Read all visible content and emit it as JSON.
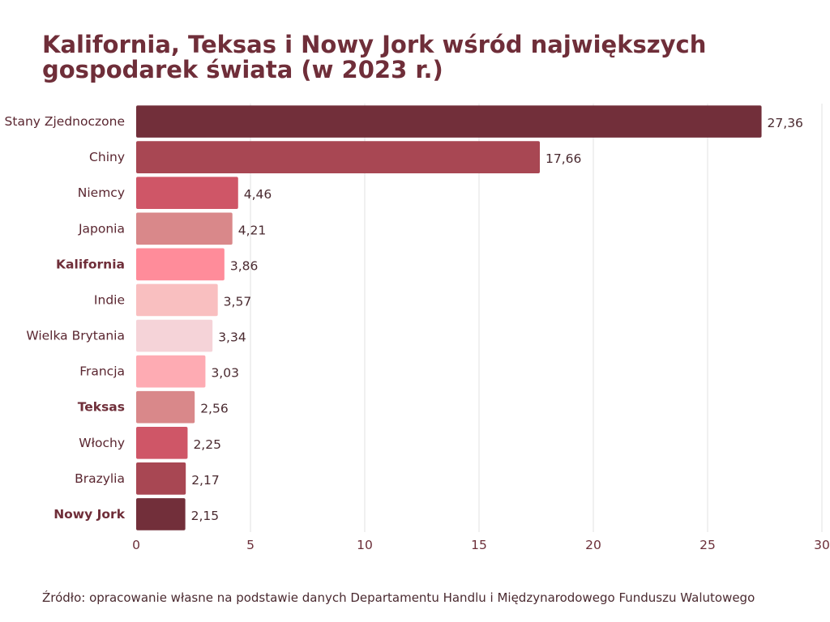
{
  "chart_data": {
    "type": "bar",
    "orientation": "horizontal",
    "title": "Kalifornia, Teksas i Nowy Jork wśród największych gospodarek świata (w 2023 r.)",
    "xlabel": "",
    "ylabel": "",
    "xlim": [
      0,
      30
    ],
    "xticks": [
      0,
      5,
      10,
      15,
      20,
      25,
      30
    ],
    "grid": true,
    "categories": [
      "Stany Zjednoczone",
      "Chiny",
      "Niemcy",
      "Japonia",
      "Kalifornia",
      "Indie",
      "Wielka Brytania",
      "Francja",
      "Teksas",
      "Włochy",
      "Brazylia",
      "Nowy Jork"
    ],
    "values": [
      27.36,
      17.66,
      4.46,
      4.21,
      3.86,
      3.57,
      3.34,
      3.03,
      2.56,
      2.25,
      2.17,
      2.15
    ],
    "value_labels": [
      "27,36",
      "17,66",
      "4,46",
      "4,21",
      "3,86",
      "3,57",
      "3,34",
      "3,03",
      "2,56",
      "2,25",
      "2,17",
      "2,15"
    ],
    "highlighted": [
      "Kalifornia",
      "Teksas",
      "Nowy Jork"
    ],
    "bar_colors": [
      "#722f3a",
      "#a84753",
      "#cf5667",
      "#d9888a",
      "#ff8c9a",
      "#f9bfc0",
      "#f5d3d8",
      "#feabb3",
      "#d9888a",
      "#cf5667",
      "#a84753",
      "#722f3a"
    ]
  },
  "source": "Źródło: opracowanie własne na podstawie danych Departamentu Handlu i Międzynarodowego Funduszu Walutowego"
}
